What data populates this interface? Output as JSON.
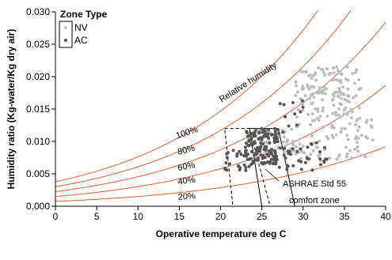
{
  "chart_data": {
    "type": "scatter",
    "title": "",
    "xlabel": "Operative temperature deg C",
    "ylabel": "Humidity ratio (Kg-water/Kg dry air)",
    "xlim": [
      0,
      40
    ],
    "ylim": [
      0,
      0.03
    ],
    "x_ticks": [
      "0",
      "5",
      "10",
      "15",
      "20",
      "25",
      "30",
      "35",
      "40"
    ],
    "y_ticks": [
      "0.000",
      "0.005",
      "0.010",
      "0.015",
      "0.020",
      "0.025",
      "0.030"
    ],
    "grid": false,
    "legend": {
      "title": "Zone Type",
      "placement": "top-left",
      "entries": [
        {
          "label": "NV",
          "color": "#bdbdbd"
        },
        {
          "label": "AC",
          "color": "#555555"
        }
      ]
    },
    "curve_color": "#e8602c",
    "relative_humidity_curves": [
      {
        "rh": 100,
        "label": "100%"
      },
      {
        "rh": 80,
        "label": "80%"
      },
      {
        "rh": 60,
        "label": "60%"
      },
      {
        "rh": 40,
        "label": "40%"
      },
      {
        "rh": 20,
        "label": "20%"
      }
    ],
    "annotations": {
      "relative_humidity": "Relative humidity",
      "comfort_line1": "ASHRAE Std 55",
      "comfort_line2": "comfort zone"
    },
    "comfort_zones": [
      {
        "style": "dashed",
        "points": [
          [
            20.5,
            0.012
          ],
          [
            23.5,
            0.012
          ],
          [
            26,
            0
          ],
          [
            21.5,
            0
          ]
        ]
      },
      {
        "style": "solid",
        "points": [
          [
            23.5,
            0.012
          ],
          [
            27,
            0.012
          ],
          [
            29,
            0
          ],
          [
            25,
            0
          ]
        ]
      }
    ],
    "series": [
      {
        "name": "NV",
        "color": "#bdbdbd",
        "clusters": [
          {
            "x": [
              29,
              37
            ],
            "y": [
              0.015,
              0.0215
            ],
            "count": 110
          },
          {
            "x": [
              29,
              38.5
            ],
            "y": [
              0.007,
              0.015
            ],
            "count": 100
          },
          {
            "x": [
              24,
              29
            ],
            "y": [
              0.008,
              0.012
            ],
            "count": 30
          }
        ]
      },
      {
        "name": "AC",
        "color": "#555555",
        "clusters": [
          {
            "x": [
              23,
              27
            ],
            "y": [
              0.0065,
              0.012
            ],
            "count": 140
          },
          {
            "x": [
              20.5,
              24
            ],
            "y": [
              0.0055,
              0.009
            ],
            "count": 25
          },
          {
            "x": [
              27,
              33
            ],
            "y": [
              0.0055,
              0.01
            ],
            "count": 35
          },
          {
            "x": [
              27,
              30
            ],
            "y": [
              0.011,
              0.0165
            ],
            "count": 12
          }
        ]
      }
    ]
  }
}
